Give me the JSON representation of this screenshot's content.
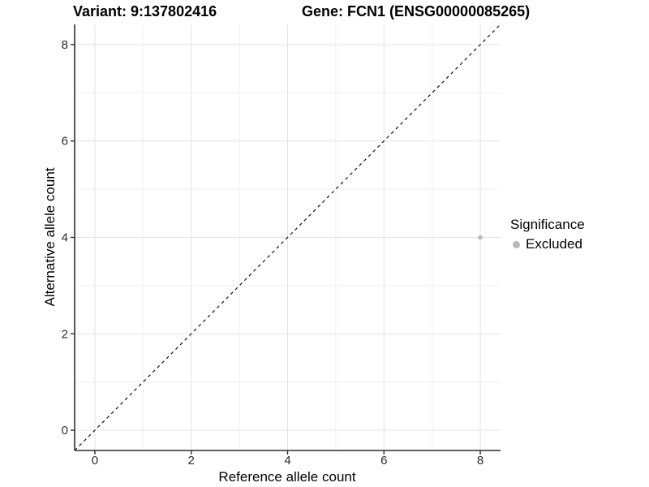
{
  "header": {
    "title_left": "Variant: 9:137802416",
    "title_right": "Gene: FCN1 (ENSG00000085265)"
  },
  "chart_data": {
    "type": "scatter",
    "title": "Variant: 9:137802416   Gene: FCN1 (ENSG00000085265)",
    "xlabel": "Reference allele count",
    "ylabel": "Alternative allele count",
    "xlim": [
      -0.42,
      8.42
    ],
    "ylim": [
      -0.42,
      8.42
    ],
    "x_major_ticks": [
      0,
      2,
      4,
      6,
      8
    ],
    "y_major_ticks": [
      0,
      2,
      4,
      6,
      8
    ],
    "x_minor_ticks": [
      1,
      3,
      5,
      7
    ],
    "y_minor_ticks": [
      1,
      3,
      5,
      7
    ],
    "x_tick_labels": [
      "0",
      "2",
      "4",
      "6",
      "8"
    ],
    "y_tick_labels": [
      "0",
      "2",
      "4",
      "6",
      "8"
    ],
    "grid": "major+minor",
    "reference_line": {
      "type": "identity y=x",
      "style": "dashed",
      "color": "#111111",
      "from": [
        -0.42,
        -0.42
      ],
      "to": [
        8.42,
        8.42
      ]
    },
    "series": [
      {
        "name": "Excluded",
        "color": "#b9b9b9",
        "points": [
          {
            "x": 8,
            "y": 4,
            "significance": "Excluded"
          }
        ]
      }
    ],
    "legend": {
      "title": "Significance",
      "position": "right",
      "items": [
        {
          "label": "Excluded",
          "color": "#b9b9b9"
        }
      ]
    }
  }
}
